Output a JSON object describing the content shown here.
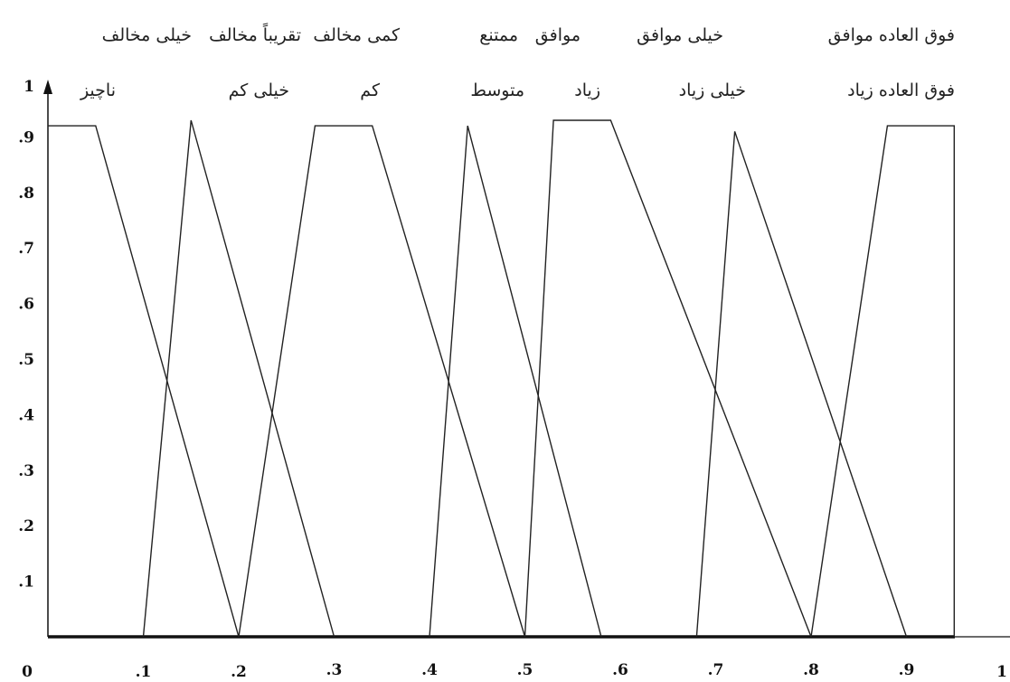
{
  "chart_data": {
    "type": "line",
    "xlim": [
      0,
      1.05
    ],
    "ylim": [
      0,
      1
    ],
    "x_ticks": [
      "0",
      ".1",
      ".2",
      ".3",
      ".4",
      ".5",
      ".6",
      ".7",
      ".8",
      ".9",
      "1"
    ],
    "y_ticks": [
      ".1",
      ".2",
      ".3",
      ".4",
      ".5",
      ".6",
      ".7",
      ".8",
      ".9",
      "1"
    ],
    "top_row_labels": [
      "خیلی مخالف",
      "تقریباً مخالف",
      "کمی مخالف",
      "ممتنع",
      "موافق",
      "خیلی موافق",
      "فوق العاده موافق"
    ],
    "second_row_labels": [
      "ناچیز",
      "خیلی کم",
      "کم",
      "متوسط",
      "زیاد",
      "خیلی زیاد",
      "فوق العاده زیاد"
    ],
    "series": [
      {
        "points": [
          [
            0,
            0.92
          ],
          [
            0.05,
            0.92
          ],
          [
            0.2,
            0
          ]
        ]
      },
      {
        "points": [
          [
            0.1,
            0
          ],
          [
            0.15,
            0.93
          ],
          [
            0.3,
            0
          ]
        ]
      },
      {
        "points": [
          [
            0.2,
            0
          ],
          [
            0.28,
            0.92
          ],
          [
            0.34,
            0.92
          ],
          [
            0.5,
            0
          ]
        ]
      },
      {
        "points": [
          [
            0.4,
            0
          ],
          [
            0.44,
            0.92
          ],
          [
            0.58,
            0
          ]
        ]
      },
      {
        "points": [
          [
            0.5,
            0
          ],
          [
            0.53,
            0.93
          ],
          [
            0.59,
            0.93
          ],
          [
            0.8,
            0
          ]
        ]
      },
      {
        "points": [
          [
            0.68,
            0
          ],
          [
            0.72,
            0.91
          ],
          [
            0.9,
            0
          ]
        ]
      },
      {
        "points": [
          [
            0.8,
            0
          ],
          [
            0.88,
            0.92
          ],
          [
            0.95,
            0.92
          ],
          [
            0.95,
            0
          ]
        ]
      }
    ]
  }
}
